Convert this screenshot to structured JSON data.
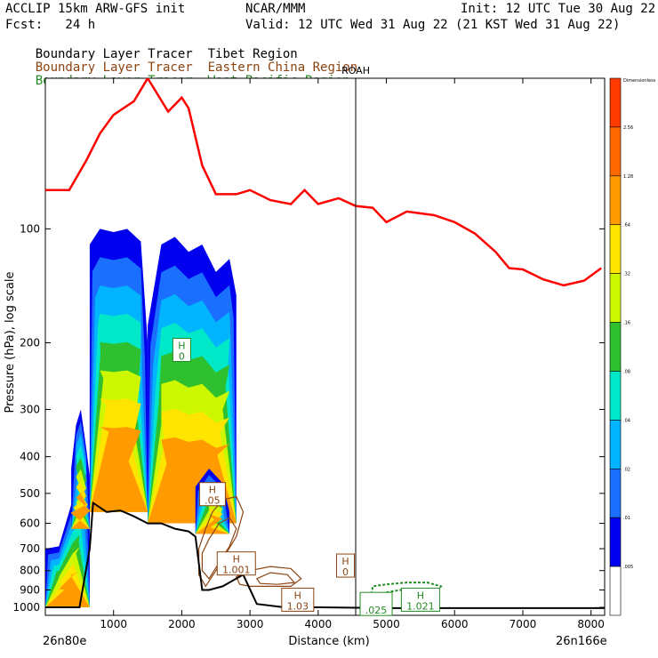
{
  "header": {
    "model": "ACCLIP 15km ARW-GFS init",
    "org": "NCAR/MMM",
    "init": "Init: 12 UTC Tue 30 Aug 22",
    "fcst": "Fcst:   24 h",
    "valid": "Valid: 12 UTC Wed 31 Aug 22 (21 KST Wed 31 Aug 22)"
  },
  "legend": [
    {
      "prefix": "Boundary Layer Tracer",
      "region": "Tibet Region",
      "color": "#000000"
    },
    {
      "prefix": "Boundary Layer Tracer",
      "region": "Eastern China Region",
      "color": "#8B4513"
    },
    {
      "prefix": "Boundary Layer Tracer",
      "region": "West Pacific Region",
      "color": "#228B22"
    }
  ],
  "chart_data": {
    "type": "cross-section",
    "title": "ACCLIP 15km ARW-GFS init",
    "xlabel": "Distance (km)",
    "ylabel": "Pressure (hPa), log scale",
    "xlim": [
      0,
      8200
    ],
    "ylim": [
      1050,
      40
    ],
    "x_ticks": [
      1000,
      2000,
      3000,
      4000,
      5000,
      6000,
      7000,
      8000
    ],
    "y_ticks": [
      100,
      200,
      300,
      400,
      500,
      600,
      700,
      800,
      900,
      1000
    ],
    "start_label": "26n80e",
    "end_label": "26n166e",
    "marker": {
      "label": "ROAH",
      "x": 4550
    },
    "colorbar": {
      "labels": [
        "Dimensionless",
        "2.56",
        "1.28",
        ".64",
        ".32",
        ".16",
        ".08",
        ".04",
        ".02",
        ".01",
        ".005"
      ],
      "colors": [
        "#ff3b00",
        "#ff6a00",
        "#ff9a00",
        "#ffe400",
        "#cdf700",
        "#2fc02f",
        "#00e8c8",
        "#00b4ff",
        "#1a6fff",
        "#0000ee",
        "#ffffff"
      ]
    },
    "tropopause": {
      "color": "#ff0000",
      "x": [
        0,
        350,
        600,
        800,
        1000,
        1300,
        1500,
        1800,
        2000,
        2100,
        2300,
        2500,
        2800,
        3000,
        3300,
        3600,
        3800,
        4000,
        4300,
        4550,
        4800,
        5000,
        5300,
        5700,
        6000,
        6300,
        6600,
        6800,
        7000,
        7300,
        7600,
        7900,
        8150
      ],
      "hPa": [
        79,
        79,
        66,
        56,
        50,
        46,
        40,
        49,
        45,
        48,
        68,
        81,
        81,
        79,
        84,
        86,
        79,
        86,
        83,
        87,
        88,
        96,
        90,
        92,
        96,
        103,
        115,
        127,
        128,
        136,
        141,
        137,
        127
      ]
    },
    "terrain": {
      "x": [
        0,
        500,
        650,
        700,
        900,
        1100,
        1300,
        1500,
        1700,
        1900,
        2100,
        2200,
        2300,
        2400,
        2600,
        2900,
        3100,
        3500,
        4000,
        5000,
        6000,
        7000,
        8200
      ],
      "hPa": [
        1000,
        1000,
        700,
        530,
        560,
        555,
        575,
        600,
        600,
        620,
        630,
        650,
        900,
        900,
        880,
        820,
        980,
        1000,
        1000,
        1005,
        1005,
        1005,
        1005
      ]
    },
    "tracer_labels": [
      {
        "id": "tibet-h",
        "label": "H",
        "value": "0",
        "x": 2000,
        "hPa": 210,
        "color": "#228B22"
      },
      {
        "id": "tibet-h2",
        "label": "H",
        "value": ".05",
        "x": 2450,
        "hPa": 505,
        "color": "#8B4513"
      },
      {
        "id": "ec-h1",
        "label": "H",
        "value": "1.001",
        "x": 2800,
        "hPa": 770,
        "color": "#8B4513"
      },
      {
        "id": "ec-h2",
        "label": "H",
        "value": "0",
        "x": 4400,
        "hPa": 780,
        "color": "#8B4513"
      },
      {
        "id": "ec-h3",
        "label": "H",
        "value": "1.03",
        "x": 3700,
        "hPa": 960,
        "color": "#8B4513"
      },
      {
        "id": "wp-h1",
        "label": "",
        "value": ".025",
        "x": 4850,
        "hPa": 985,
        "color": "#228B22"
      },
      {
        "id": "wp-h2",
        "label": "H",
        "value": "1.021",
        "x": 5500,
        "hPa": 960,
        "color": "#228B22"
      }
    ]
  }
}
